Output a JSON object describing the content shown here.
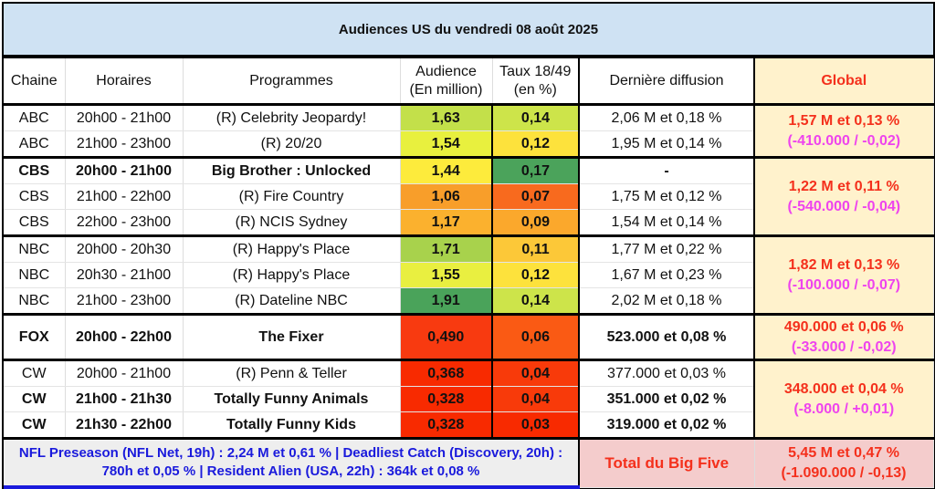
{
  "title": "Audiences US du vendredi 08 août 2025",
  "headers": {
    "chaine": "Chaine",
    "horaires": "Horaires",
    "programmes": "Programmes",
    "audience_1": "Audience",
    "audience_2": "(En million)",
    "taux_1": "Taux 18/49",
    "taux_2": "(en %)",
    "derniere": "Dernière diffusion",
    "global": "Global"
  },
  "groups": [
    {
      "global_1": "1,57 M et 0,13 %",
      "global_2": "(-410.000 / -0,02)",
      "rows": [
        {
          "chaine": "ABC",
          "horaires": "20h00 - 21h00",
          "programme": "(R) Celebrity Jeopardy!",
          "audience": "1,63",
          "taux": "0,14",
          "derniere": "2,06 M et 0,18 %",
          "bold": false,
          "aud_color": "#c3e04a",
          "taux_color": "#cde44a"
        },
        {
          "chaine": "ABC",
          "horaires": "21h00 - 23h00",
          "programme": "(R) 20/20",
          "audience": "1,54",
          "taux": "0,12",
          "derniere": "1,95 M et 0,14 %",
          "bold": false,
          "aud_color": "#e8f03e",
          "taux_color": "#fde23c"
        }
      ]
    },
    {
      "global_1": "1,22 M et 0,11 %",
      "global_2": "(-540.000 / -0,04)",
      "rows": [
        {
          "chaine": "CBS",
          "horaires": "20h00 - 21h00",
          "programme": "Big Brother : Unlocked",
          "audience": "1,44",
          "taux": "0,17",
          "derniere": "-",
          "bold": true,
          "aud_color": "#fdeb3c",
          "taux_color": "#4ba35b"
        },
        {
          "chaine": "CBS",
          "horaires": "21h00 - 22h00",
          "programme": "(R) Fire Country",
          "audience": "1,06",
          "taux": "0,07",
          "derniere": "1,75 M et 0,12 %",
          "bold": false,
          "aud_color": "#f89e2a",
          "taux_color": "#f86a1e"
        },
        {
          "chaine": "CBS",
          "horaires": "22h00 - 23h00",
          "programme": "(R) NCIS Sydney",
          "audience": "1,17",
          "taux": "0,09",
          "derniere": "1,54 M et 0,14 %",
          "bold": false,
          "aud_color": "#fbb12e",
          "taux_color": "#fba82c"
        }
      ]
    },
    {
      "global_1": "1,82 M et 0,13 %",
      "global_2": "(-100.000 / -0,07)",
      "rows": [
        {
          "chaine": "NBC",
          "horaires": "20h00 - 20h30",
          "programme": "(R) Happy's Place",
          "audience": "1,71",
          "taux": "0,11",
          "derniere": "1,77 M et 0,22 %",
          "bold": false,
          "aud_color": "#a8d24c",
          "taux_color": "#fcc838"
        },
        {
          "chaine": "NBC",
          "horaires": "20h30 - 21h00",
          "programme": "(R) Happy's Place",
          "audience": "1,55",
          "taux": "0,12",
          "derniere": "1,67 M et 0,23 %",
          "bold": false,
          "aud_color": "#e9ef40",
          "taux_color": "#fde23c"
        },
        {
          "chaine": "NBC",
          "horaires": "21h00 - 23h00",
          "programme": "(R) Dateline NBC",
          "audience": "1,91",
          "taux": "0,14",
          "derniere": "2,02 M et 0,18 %",
          "bold": false,
          "aud_color": "#4aa35a",
          "taux_color": "#cde44a"
        }
      ]
    },
    {
      "global_1": "490.000 et 0,06 %",
      "global_2": "(-33.000 / -0,02)",
      "tall": true,
      "rows": [
        {
          "chaine": "FOX",
          "horaires": "20h00 - 22h00",
          "programme": "The Fixer",
          "audience": "0,490",
          "taux": "0,06",
          "derniere": "523.000 et 0,08 %",
          "bold": true,
          "aud_color": "#f83a10",
          "taux_color": "#fa5a14"
        }
      ]
    },
    {
      "global_1": "348.000 et 0,04 %",
      "global_2": "(-8.000 / +0,01)",
      "rows": [
        {
          "chaine": "CW",
          "horaires": "20h00 - 21h00",
          "programme": "(R) Penn & Teller",
          "audience": "0,368",
          "taux": "0,04",
          "derniere": "377.000 et 0,03 %",
          "bold": false,
          "aud_color": "#f82a00",
          "taux_color": "#f83a0a"
        },
        {
          "chaine": "CW",
          "horaires": "21h00 - 21h30",
          "programme": "Totally Funny Animals",
          "audience": "0,328",
          "taux": "0,04",
          "derniere": "351.000 et 0,02 %",
          "bold": true,
          "aud_color": "#f82a00",
          "taux_color": "#f83a0a"
        },
        {
          "chaine": "CW",
          "horaires": "21h30 - 22h00",
          "programme": "Totally Funny Kids",
          "audience": "0,328",
          "taux": "0,03",
          "derniere": "319.000 et 0,02 %",
          "bold": true,
          "aud_color": "#f82a00",
          "taux_color": "#f82a00"
        }
      ]
    }
  ],
  "footer": {
    "note": "NFL Preseason (NFL Net, 19h) : 2,24 M et 0,61 % | Deadliest Catch (Discovery, 20h) : 780h et 0,05 % | Resident Alien (USA, 22h) : 364k et 0,08 %",
    "total_label": "Total du Big Five",
    "total_1": "5,45 M et 0,47 %",
    "total_2": "(-1.090.000 / -0,13)"
  }
}
